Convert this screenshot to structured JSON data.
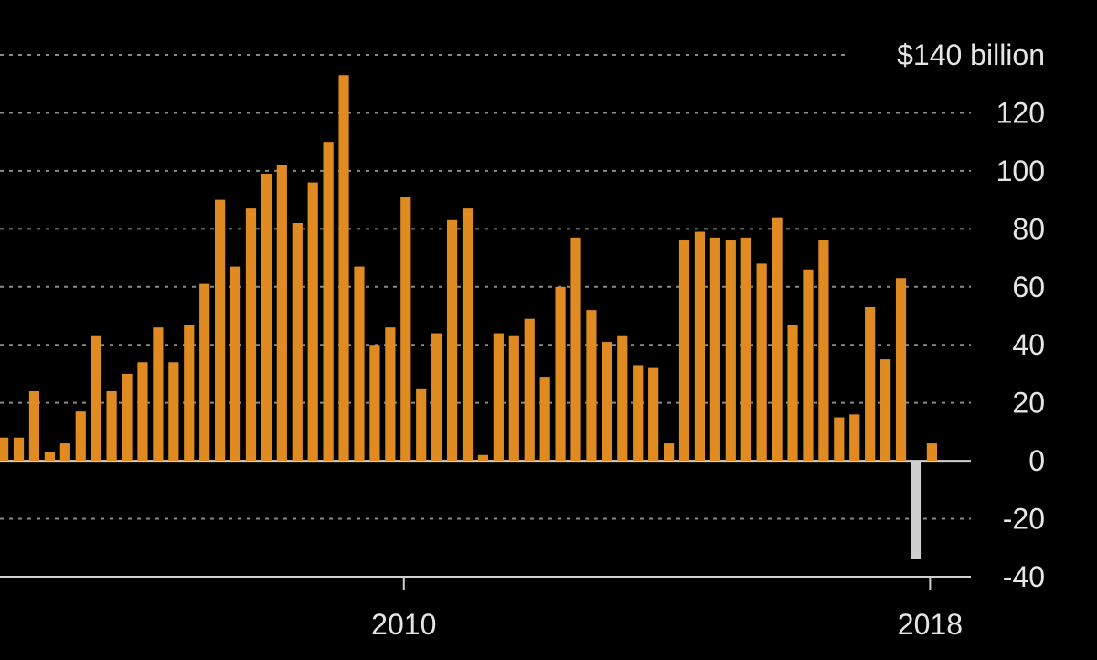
{
  "chart_data": {
    "type": "bar",
    "title": "",
    "xlabel": "",
    "ylabel": "",
    "unit_label": "$140 billion",
    "ylim": [
      -40,
      140
    ],
    "yticks": [
      -40,
      -20,
      0,
      20,
      40,
      60,
      80,
      100,
      120,
      140
    ],
    "ytick_labels": [
      "-40",
      "-20",
      "0",
      "20",
      "40",
      "60",
      "80",
      "100",
      "120",
      "$140 billion"
    ],
    "grid": true,
    "xtick_labels": [
      "2010",
      "2018"
    ],
    "xtick_index": [
      26,
      60
    ],
    "positive_color": "#e08a22",
    "negative_color": "#cfcfcf",
    "values": [
      8,
      8,
      24,
      3,
      6,
      17,
      43,
      24,
      30,
      34,
      46,
      34,
      47,
      61,
      90,
      67,
      87,
      99,
      102,
      82,
      96,
      110,
      133,
      67,
      40,
      46,
      91,
      25,
      44,
      83,
      87,
      2,
      44,
      43,
      49,
      29,
      60,
      77,
      52,
      41,
      43,
      33,
      32,
      6,
      76,
      79,
      77,
      76,
      77,
      68,
      84,
      47,
      66,
      76,
      15,
      16,
      53,
      35,
      63,
      -34,
      6
    ]
  }
}
